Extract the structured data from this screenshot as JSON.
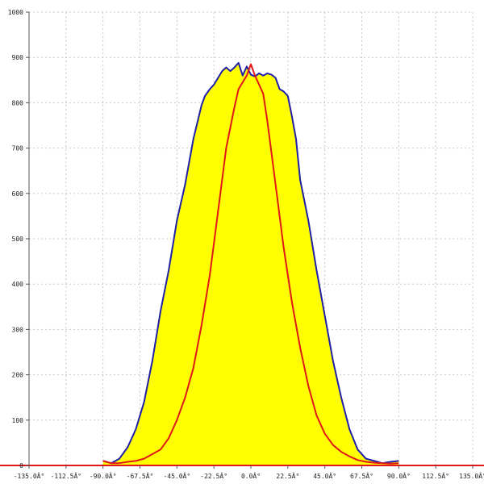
{
  "chart_data": {
    "type": "area",
    "grid": true,
    "xlim": [
      -135,
      135
    ],
    "ylim": [
      0,
      1000
    ],
    "x_ticks": [
      -135,
      -112.5,
      -90,
      -67.5,
      -45,
      -22.5,
      0,
      22.5,
      45,
      67.5,
      90,
      112.5,
      135
    ],
    "x_tick_labels": [
      "-135.0Â°",
      "-112.5Â°",
      "-90.0Â°",
      "-67.5Â°",
      "-45.0Â°",
      "-22.5Â°",
      "0.0Â°",
      "22.5Â°",
      "45.0Â°",
      "67.5Â°",
      "90.0Â°",
      "112.5Â°",
      "135.0Â°"
    ],
    "y_ticks": [
      0,
      100,
      200,
      300,
      400,
      500,
      600,
      700,
      800,
      900,
      1000
    ],
    "y_tick_labels": [
      "0",
      "100",
      "200",
      "300",
      "400",
      "500",
      "600",
      "700",
      "800",
      "900",
      "1000"
    ],
    "series": [
      {
        "color": "#1f1fa8",
        "fill": "#ffff00",
        "x": [
          -90,
          -85,
          -80,
          -75,
          -70,
          -65,
          -60,
          -55,
          -50,
          -45,
          -40,
          -35,
          -30,
          -28,
          -25,
          -22.5,
          -20,
          -17.5,
          -15,
          -12.5,
          -10,
          -7.5,
          -5,
          -2.5,
          0,
          2.5,
          5,
          7.5,
          10,
          12.5,
          15,
          17.5,
          20,
          22.5,
          25,
          27.5,
          30,
          35,
          40,
          45,
          50,
          55,
          60,
          65,
          70,
          75,
          80,
          85,
          90
        ],
        "values": [
          10,
          5,
          15,
          40,
          80,
          140,
          230,
          340,
          430,
          540,
          620,
          720,
          795,
          815,
          830,
          840,
          855,
          870,
          878,
          870,
          878,
          888,
          860,
          880,
          862,
          858,
          865,
          860,
          865,
          862,
          855,
          830,
          825,
          815,
          770,
          720,
          630,
          540,
          430,
          330,
          230,
          150,
          80,
          35,
          15,
          10,
          5,
          8,
          10
        ]
      },
      {
        "color": "#e01818",
        "x": [
          -90,
          -85,
          -80,
          -75,
          -70,
          -65,
          -60,
          -55,
          -50,
          -45,
          -40,
          -35,
          -30,
          -25,
          -20,
          -15,
          -10,
          -7.5,
          -5,
          -2.5,
          0,
          2.5,
          5,
          7.5,
          10,
          15,
          20,
          25,
          30,
          35,
          40,
          45,
          50,
          55,
          60,
          65,
          70,
          75,
          80,
          85,
          90
        ],
        "values": [
          10,
          5,
          5,
          8,
          10,
          15,
          25,
          35,
          60,
          100,
          150,
          215,
          310,
          420,
          560,
          700,
          790,
          830,
          845,
          860,
          885,
          860,
          840,
          820,
          760,
          620,
          480,
          360,
          260,
          175,
          110,
          70,
          45,
          30,
          20,
          12,
          8,
          6,
          5,
          4,
          5
        ]
      }
    ]
  }
}
